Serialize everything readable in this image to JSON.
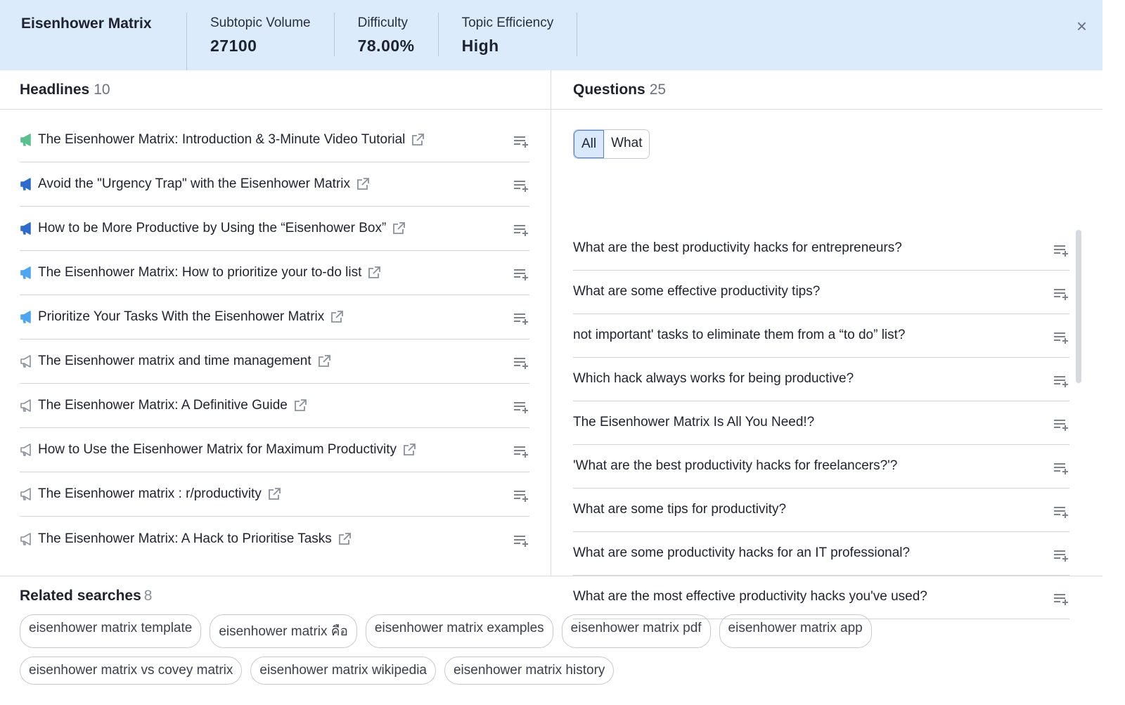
{
  "header": {
    "title": "Eisenhower Matrix",
    "metrics": [
      {
        "label": "Subtopic Volume",
        "value": "27100"
      },
      {
        "label": "Difficulty",
        "value": "78.00%"
      },
      {
        "label": "Topic Efficiency",
        "value": "High"
      }
    ],
    "close": "×"
  },
  "headlines": {
    "title": "Headlines",
    "count": "10",
    "items": [
      {
        "text": "The Eisenhower Matrix: Introduction & 3-Minute Video Tutorial",
        "color": "#5bbf8e",
        "filled": true
      },
      {
        "text": "Avoid the \"Urgency Trap\" with the Eisenhower Matrix",
        "color": "#2e6bcc",
        "filled": true
      },
      {
        "text": "How to be More Productive by Using the “Eisenhower Box”",
        "color": "#2e6bcc",
        "filled": true
      },
      {
        "text": "The Eisenhower Matrix: How to prioritize your to-do list",
        "color": "#4ea5f0",
        "filled": true
      },
      {
        "text": "Prioritize Your Tasks With the Eisenhower Matrix",
        "color": "#4ea5f0",
        "filled": true
      },
      {
        "text": "The Eisenhower matrix and time management",
        "color": "#8b919b",
        "filled": false
      },
      {
        "text": "The Eisenhower Matrix: A Definitive Guide",
        "color": "#8b919b",
        "filled": false
      },
      {
        "text": "How to Use the Eisenhower Matrix for Maximum Productivity",
        "color": "#8b919b",
        "filled": false
      },
      {
        "text": "The Eisenhower matrix : r/productivity",
        "color": "#8b919b",
        "filled": false
      },
      {
        "text": "The Eisenhower Matrix: A Hack to Prioritise Tasks",
        "color": "#8b919b",
        "filled": false
      }
    ]
  },
  "questions": {
    "title": "Questions",
    "count": "25",
    "filters": [
      "All",
      "What"
    ],
    "selected_filter": "All",
    "items": [
      "What are the best productivity hacks for entrepreneurs?",
      "What are some effective productivity tips?",
      "not important' tasks to eliminate them from a “to do” list?",
      "Which hack always works for being productive?",
      "The Eisenhower Matrix Is All You Need!?",
      "'What are the best productivity hacks for freelancers?'?",
      "What are some tips for productivity?",
      "What are some productivity hacks for an IT professional?",
      "What are the most effective productivity hacks you've used?"
    ]
  },
  "related": {
    "title": "Related searches",
    "count": "8",
    "items": [
      "eisenhower matrix template",
      "eisenhower matrix คือ",
      "eisenhower matrix examples",
      "eisenhower matrix pdf",
      "eisenhower matrix app",
      "eisenhower matrix vs covey matrix",
      "eisenhower matrix wikipedia",
      "eisenhower matrix history"
    ]
  }
}
